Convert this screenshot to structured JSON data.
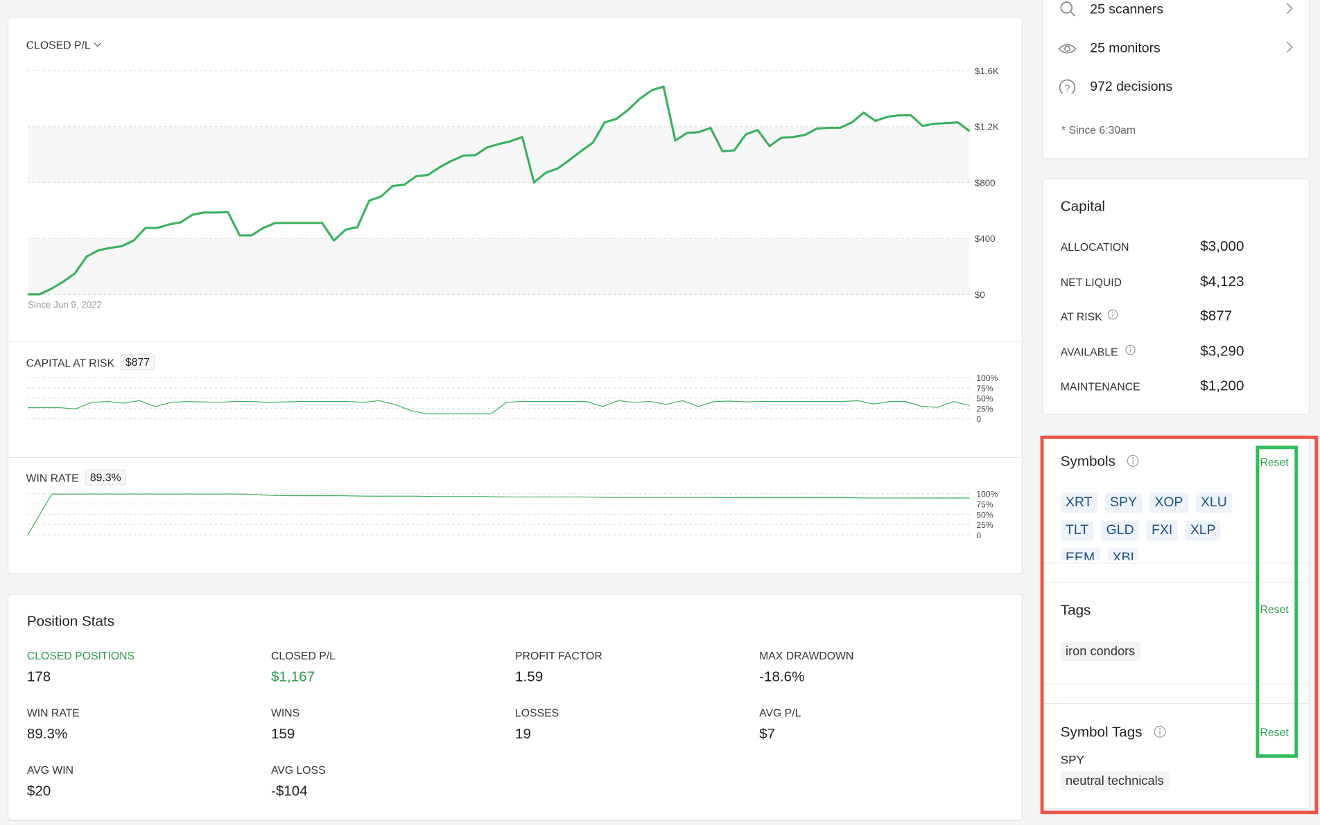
{
  "chart_data": [
    {
      "type": "line",
      "title": "CLOSED P/L",
      "annotation": "Since Jun 9, 2022",
      "series": [
        {
          "color": "#3bb15e",
          "values": [
            0,
            0,
            40,
            90,
            150,
            270,
            315,
            332,
            345,
            385,
            475,
            475,
            500,
            515,
            570,
            585,
            585,
            588,
            421,
            421,
            475,
            510,
            511,
            511,
            511,
            511,
            385,
            463,
            481,
            670,
            700,
            775,
            785,
            845,
            854,
            910,
            955,
            992,
            995,
            1050,
            1075,
            1095,
            1125,
            800,
            870,
            900,
            960,
            1025,
            1085,
            1230,
            1255,
            1320,
            1400,
            1460,
            1486,
            1100,
            1155,
            1160,
            1190,
            1023,
            1030,
            1145,
            1175,
            1060,
            1120,
            1125,
            1140,
            1185,
            1191,
            1191,
            1230,
            1300,
            1240,
            1270,
            1280,
            1281,
            1205,
            1220,
            1225,
            1230,
            1167
          ]
        }
      ],
      "ylim": [
        0,
        1600
      ],
      "yticks": [
        {
          "value": 0,
          "label": "$0"
        },
        {
          "value": 400,
          "label": "$400"
        },
        {
          "value": 800,
          "label": "$800"
        },
        {
          "value": 1200,
          "label": "$1.2K"
        },
        {
          "value": 1600,
          "label": "$1.6K"
        }
      ],
      "grid": true
    },
    {
      "type": "line",
      "title": "CAPITAL AT RISK",
      "badge": "$877",
      "series": [
        {
          "color": "#3bb15e",
          "values": [
            27,
            27,
            27,
            24,
            40,
            42,
            38,
            44,
            30,
            40,
            42,
            41,
            40,
            42,
            42,
            40,
            41,
            42,
            42,
            42,
            42,
            40,
            44,
            35,
            20,
            12,
            12,
            12,
            12,
            12,
            40,
            42,
            42,
            42,
            42,
            42,
            30,
            44,
            40,
            42,
            35,
            44,
            30,
            42,
            43,
            41,
            42,
            42,
            42,
            42,
            42,
            42,
            44,
            36,
            42,
            42,
            30,
            28,
            42,
            32
          ]
        }
      ],
      "ylim": [
        0,
        100
      ],
      "yticks": [
        0,
        {
          "value": 25,
          "label": "25%"
        },
        {
          "value": 50,
          "label": "50%"
        },
        {
          "value": 75,
          "label": "75%"
        },
        {
          "value": 100,
          "label": "100%"
        }
      ],
      "grid": true
    },
    {
      "type": "line",
      "title": "WIN RATE",
      "badge": "89.3%",
      "series": [
        {
          "color": "#3bb15e",
          "values": [
            0,
            99,
            99,
            99,
            99,
            99,
            99,
            99,
            99,
            99,
            96,
            95,
            95,
            95,
            94,
            94,
            94,
            93,
            93,
            93,
            92,
            92,
            92,
            92,
            91,
            91,
            91,
            91,
            91,
            90,
            90,
            90,
            90,
            90,
            90,
            89.5,
            89.5,
            89.3,
            89.3,
            89.3
          ]
        }
      ],
      "ylim": [
        0,
        100
      ],
      "yticks": [
        0,
        {
          "value": 25,
          "label": "25%"
        },
        {
          "value": 50,
          "label": "50%"
        },
        {
          "value": 75,
          "label": "75%"
        },
        {
          "value": 100,
          "label": "100%"
        }
      ],
      "grid": true
    }
  ],
  "position_stats": {
    "title": "Position Stats",
    "items": [
      {
        "label": "CLOSED POSITIONS",
        "value": "178"
      },
      {
        "label": "CLOSED P/L",
        "value": "$1,167"
      },
      {
        "label": "PROFIT FACTOR",
        "value": "1.59"
      },
      {
        "label": "MAX DRAWDOWN",
        "value": "-18.6%"
      },
      {
        "label": "WIN RATE",
        "value": "89.3%"
      },
      {
        "label": "WINS",
        "value": "159"
      },
      {
        "label": "LOSSES",
        "value": "19"
      },
      {
        "label": "AVG P/L",
        "value": "$7"
      },
      {
        "label": "AVG WIN",
        "value": "$20"
      },
      {
        "label": "AVG LOSS",
        "value": "-$104"
      }
    ]
  },
  "activity": {
    "items": [
      "25 scanners",
      "25 monitors",
      "972 decisions"
    ],
    "footnote": "* Since 6:30am"
  },
  "capital": {
    "title": "Capital",
    "rows": [
      [
        "ALLOCATION",
        "$3,000"
      ],
      [
        "NET LIQUID",
        "$4,123"
      ],
      [
        "AT RISK",
        "$877"
      ],
      [
        "AVAILABLE",
        "$3,290"
      ],
      [
        "MAINTENANCE",
        "$1,200"
      ]
    ]
  },
  "symbols": {
    "title": "Symbols",
    "reset": "Reset",
    "items": [
      "XRT",
      "SPY",
      "XOP",
      "XLU",
      "TLT",
      "GLD",
      "FXI",
      "XLP",
      "EEM",
      "XBI"
    ]
  },
  "tags": {
    "title": "Tags",
    "reset": "Reset",
    "items": [
      "iron condors"
    ]
  },
  "symbol_tags": {
    "title": "Symbol Tags",
    "reset": "Reset",
    "symbol": "SPY",
    "items": [
      "neutral technicals"
    ]
  }
}
